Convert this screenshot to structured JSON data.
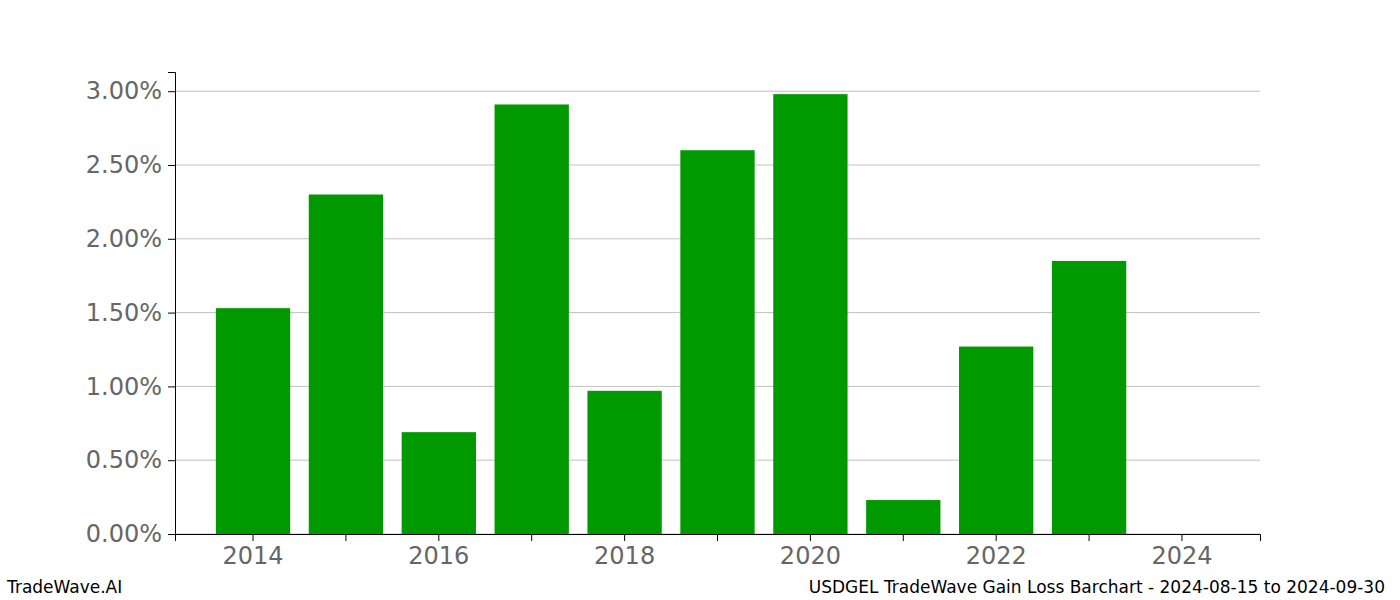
{
  "chart_data": {
    "type": "bar",
    "categories": [
      "2014",
      null,
      "2016",
      null,
      "2018",
      null,
      "2020",
      null,
      "2022",
      null,
      "2024"
    ],
    "values": [
      1.53,
      2.3,
      0.69,
      2.91,
      0.97,
      2.6,
      2.98,
      0.23,
      1.27,
      1.85,
      0
    ],
    "color": "#009900",
    "ylim": [
      0,
      3.13
    ],
    "yticks": [
      {
        "value": 0,
        "label": "0.00%"
      },
      {
        "value": 0.5,
        "label": "0.50%"
      },
      {
        "value": 1,
        "label": "1.00%"
      },
      {
        "value": 1.5,
        "label": "1.50%"
      },
      {
        "value": 2,
        "label": "2.00%"
      },
      {
        "value": 2.5,
        "label": "2.50%"
      },
      {
        "value": 3,
        "label": "3.00%"
      }
    ],
    "grid": true,
    "annotations": [
      "TradeWave.AI",
      "USDGEL TradeWave Gain Loss Barchart - 2024-08-15 to 2024-09-30"
    ]
  }
}
